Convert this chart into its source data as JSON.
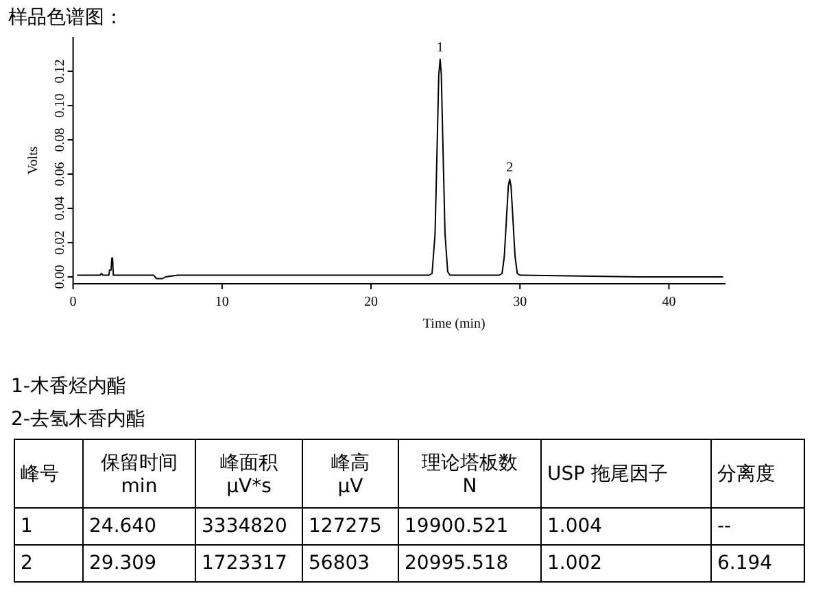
{
  "chart_data": {
    "type": "line",
    "title": "样品色谱图：",
    "xlabel": "Time (min)",
    "ylabel": "Volts",
    "color": "#000000",
    "xlim": [
      0,
      43.8
    ],
    "ylim": [
      -0.004,
      0.14
    ],
    "xticks": [
      0,
      10,
      20,
      30,
      40
    ],
    "yticks": [
      {
        "value": 0,
        "label": "0.00"
      },
      {
        "value": 0.02,
        "label": "0.02"
      },
      {
        "value": 0.04,
        "label": "0.04"
      },
      {
        "value": 0.06,
        "label": "0.06"
      },
      {
        "value": 0.08,
        "label": "0.08"
      },
      {
        "value": 0.1,
        "label": "0.10"
      },
      {
        "value": 0.12,
        "label": "0.12"
      }
    ],
    "x": [
      0.3,
      1.8,
      1.9,
      2.0,
      2.4,
      2.45,
      2.55,
      2.6,
      2.65,
      2.7,
      3.0,
      5.4,
      5.6,
      6.0,
      6.2,
      7.0,
      15,
      23.9,
      24.1,
      24.3,
      24.45,
      24.55,
      24.64,
      24.72,
      24.82,
      24.97,
      25.15,
      25.3,
      28.6,
      28.8,
      28.95,
      29.1,
      29.22,
      29.31,
      29.4,
      29.52,
      29.67,
      29.82,
      30.0,
      38,
      43.6
    ],
    "values": [
      0.001,
      0.001,
      0.002,
      0.001,
      0.001,
      0.004,
      0.004,
      0.011,
      0.011,
      0.001,
      0.001,
      0.001,
      -0.001,
      -0.001,
      0.0,
      0.001,
      0.001,
      0.001,
      0.002,
      0.025,
      0.08,
      0.118,
      0.127,
      0.118,
      0.08,
      0.025,
      0.003,
      0.001,
      0.001,
      0.002,
      0.012,
      0.035,
      0.053,
      0.057,
      0.053,
      0.035,
      0.012,
      0.002,
      0.001,
      0.0,
      0.0
    ],
    "annotations": [
      {
        "text": "1",
        "x": 24.64,
        "y": 0.127
      },
      {
        "text": "2",
        "x": 29.31,
        "y": 0.057
      },
      "1-木香烃内酯",
      "2-去氢木香内酯",
      "峰号",
      "保留时间 min",
      "峰面积 μV*s",
      "峰高 μV",
      "理论塔板数 N",
      "USP 拖尾因子",
      "分离度",
      "1",
      "24.640",
      "3334820",
      "127275",
      "19900.521",
      "1.004",
      "--",
      "2",
      "29.309",
      "1723317",
      "56803",
      "20995.518",
      "1.002",
      "6.194"
    ]
  }
}
